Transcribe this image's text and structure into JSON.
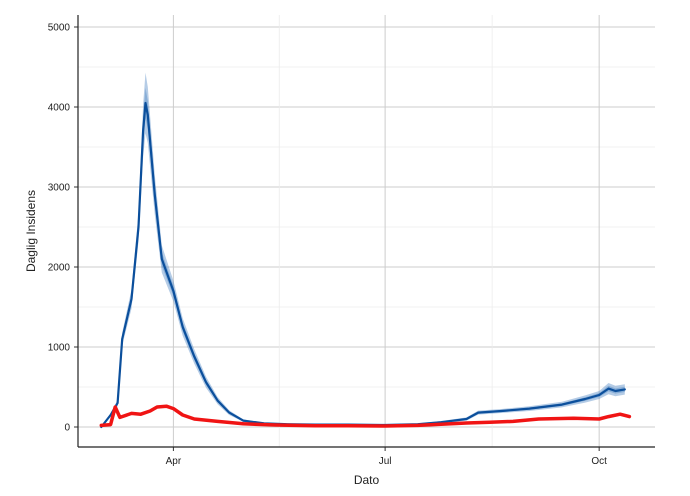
{
  "chart_data": {
    "type": "line",
    "xlabel": "Dato",
    "ylabel": "Daglig Insidens",
    "x_range": [
      "2020-02-20",
      "2020-10-25"
    ],
    "ylim": [
      -250,
      5150
    ],
    "y_ticks": [
      0,
      1000,
      2000,
      3000,
      4000,
      5000
    ],
    "x_ticks": [
      {
        "date": "2020-04-01",
        "label": "Apr"
      },
      {
        "date": "2020-07-01",
        "label": "Jul"
      },
      {
        "date": "2020-10-01",
        "label": "Oct"
      }
    ],
    "grid": true,
    "series": [
      {
        "color": "#0b4f9c",
        "band_color": "#5b8fc8",
        "points": [
          [
            "2020-03-01",
            0
          ],
          [
            "2020-03-05",
            150
          ],
          [
            "2020-03-08",
            300
          ],
          [
            "2020-03-10",
            1100
          ],
          [
            "2020-03-14",
            1600
          ],
          [
            "2020-03-17",
            2500
          ],
          [
            "2020-03-19",
            3700
          ],
          [
            "2020-03-20",
            4050
          ],
          [
            "2020-03-21",
            3900
          ],
          [
            "2020-03-24",
            2900
          ],
          [
            "2020-03-27",
            2100
          ],
          [
            "2020-04-01",
            1700
          ],
          [
            "2020-04-05",
            1250
          ],
          [
            "2020-04-10",
            880
          ],
          [
            "2020-04-15",
            560
          ],
          [
            "2020-04-20",
            330
          ],
          [
            "2020-04-25",
            180
          ],
          [
            "2020-05-01",
            80
          ],
          [
            "2020-05-10",
            45
          ],
          [
            "2020-05-20",
            35
          ],
          [
            "2020-06-01",
            30
          ],
          [
            "2020-06-15",
            30
          ],
          [
            "2020-07-01",
            25
          ],
          [
            "2020-07-15",
            35
          ],
          [
            "2020-07-25",
            60
          ],
          [
            "2020-08-05",
            100
          ],
          [
            "2020-08-10",
            180
          ],
          [
            "2020-08-20",
            200
          ],
          [
            "2020-09-01",
            230
          ],
          [
            "2020-09-15",
            280
          ],
          [
            "2020-09-25",
            350
          ],
          [
            "2020-10-01",
            400
          ],
          [
            "2020-10-05",
            480
          ],
          [
            "2020-10-08",
            450
          ],
          [
            "2020-10-12",
            470
          ]
        ],
        "band_halfwidth": [
          0,
          20,
          40,
          80,
          120,
          180,
          330,
          380,
          350,
          250,
          170,
          130,
          110,
          90,
          70,
          45,
          30,
          15,
          10,
          8,
          8,
          8,
          8,
          10,
          15,
          20,
          25,
          25,
          30,
          35,
          45,
          50,
          70,
          65,
          65
        ]
      },
      {
        "color": "#f01414",
        "points": [
          [
            "2020-03-01",
            20
          ],
          [
            "2020-03-05",
            30
          ],
          [
            "2020-03-07",
            250
          ],
          [
            "2020-03-09",
            120
          ],
          [
            "2020-03-14",
            170
          ],
          [
            "2020-03-18",
            160
          ],
          [
            "2020-03-22",
            200
          ],
          [
            "2020-03-25",
            250
          ],
          [
            "2020-03-29",
            260
          ],
          [
            "2020-04-01",
            230
          ],
          [
            "2020-04-05",
            150
          ],
          [
            "2020-04-10",
            100
          ],
          [
            "2020-04-20",
            70
          ],
          [
            "2020-05-01",
            40
          ],
          [
            "2020-05-15",
            25
          ],
          [
            "2020-06-01",
            15
          ],
          [
            "2020-06-15",
            15
          ],
          [
            "2020-07-01",
            12
          ],
          [
            "2020-07-15",
            20
          ],
          [
            "2020-07-25",
            35
          ],
          [
            "2020-08-05",
            50
          ],
          [
            "2020-08-15",
            60
          ],
          [
            "2020-08-25",
            70
          ],
          [
            "2020-09-05",
            100
          ],
          [
            "2020-09-20",
            110
          ],
          [
            "2020-10-01",
            100
          ],
          [
            "2020-10-05",
            130
          ],
          [
            "2020-10-10",
            160
          ],
          [
            "2020-10-14",
            130
          ]
        ]
      }
    ]
  }
}
